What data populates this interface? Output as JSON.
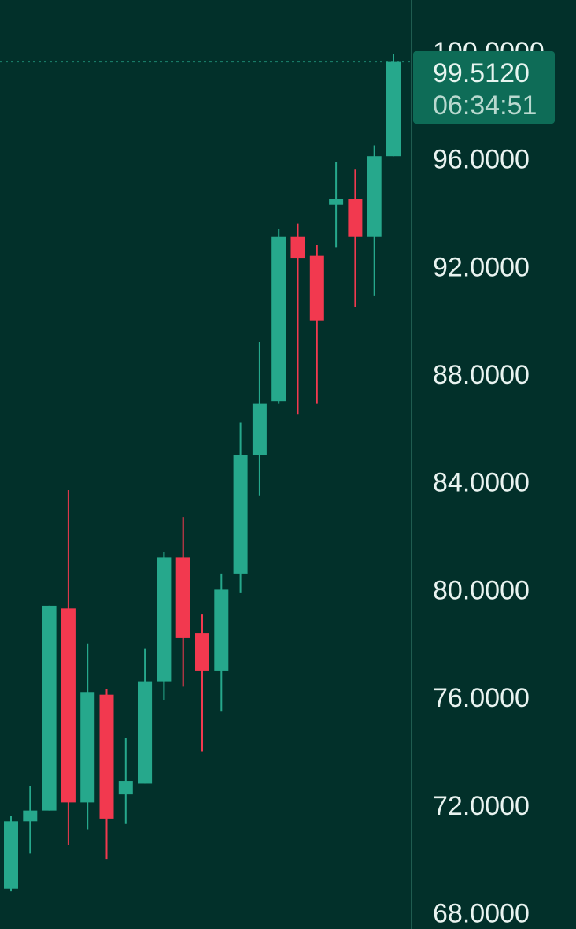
{
  "theme": {
    "background": "#02302a",
    "up_color": "#26a88c",
    "down_color": "#f2394f",
    "axis_text_color": "#e9f3f0",
    "price_tag_color": "#0e6c57",
    "divider_color": "#1f5c50"
  },
  "price_tag": {
    "price": "99.5120",
    "countdown": "06:34:51"
  },
  "chart_data": {
    "type": "candlestick",
    "y_axis": {
      "position": "right",
      "ylim": [
        67.4,
        101.9
      ],
      "ticks": [
        "100.0000",
        "96.0000",
        "92.0000",
        "88.0000",
        "84.0000",
        "80.0000",
        "76.0000",
        "72.0000",
        "68.0000"
      ]
    },
    "grid": false,
    "candles": [
      {
        "open": 68.9,
        "high": 71.6,
        "low": 68.8,
        "close": 71.4
      },
      {
        "open": 71.4,
        "high": 72.7,
        "low": 70.2,
        "close": 71.8
      },
      {
        "open": 71.8,
        "high": 79.4,
        "low": 71.8,
        "close": 79.4
      },
      {
        "open": 79.3,
        "high": 83.7,
        "low": 70.5,
        "close": 72.1
      },
      {
        "open": 72.1,
        "high": 78.0,
        "low": 71.1,
        "close": 76.2
      },
      {
        "open": 76.1,
        "high": 76.3,
        "low": 70.0,
        "close": 71.5
      },
      {
        "open": 72.4,
        "high": 74.5,
        "low": 71.3,
        "close": 72.9
      },
      {
        "open": 72.8,
        "high": 77.8,
        "low": 72.8,
        "close": 76.6
      },
      {
        "open": 76.6,
        "high": 81.4,
        "low": 75.9,
        "close": 81.2
      },
      {
        "open": 81.2,
        "high": 82.7,
        "low": 76.4,
        "close": 78.2
      },
      {
        "open": 78.4,
        "high": 79.1,
        "low": 74.0,
        "close": 77.0
      },
      {
        "open": 77.0,
        "high": 80.6,
        "low": 75.5,
        "close": 80.0
      },
      {
        "open": 80.6,
        "high": 86.2,
        "low": 79.9,
        "close": 85.0
      },
      {
        "open": 85.0,
        "high": 89.2,
        "low": 83.5,
        "close": 86.9
      },
      {
        "open": 87.0,
        "high": 93.4,
        "low": 86.9,
        "close": 93.1
      },
      {
        "open": 93.1,
        "high": 93.6,
        "low": 86.5,
        "close": 92.3
      },
      {
        "open": 92.4,
        "high": 92.8,
        "low": 86.9,
        "close": 90.0
      },
      {
        "open": 94.3,
        "high": 95.9,
        "low": 92.7,
        "close": 94.5
      },
      {
        "open": 94.5,
        "high": 95.6,
        "low": 90.5,
        "close": 93.1
      },
      {
        "open": 93.1,
        "high": 96.5,
        "low": 90.9,
        "close": 96.1
      },
      {
        "open": 96.1,
        "high": 99.9,
        "low": 96.1,
        "close": 99.6
      }
    ]
  }
}
